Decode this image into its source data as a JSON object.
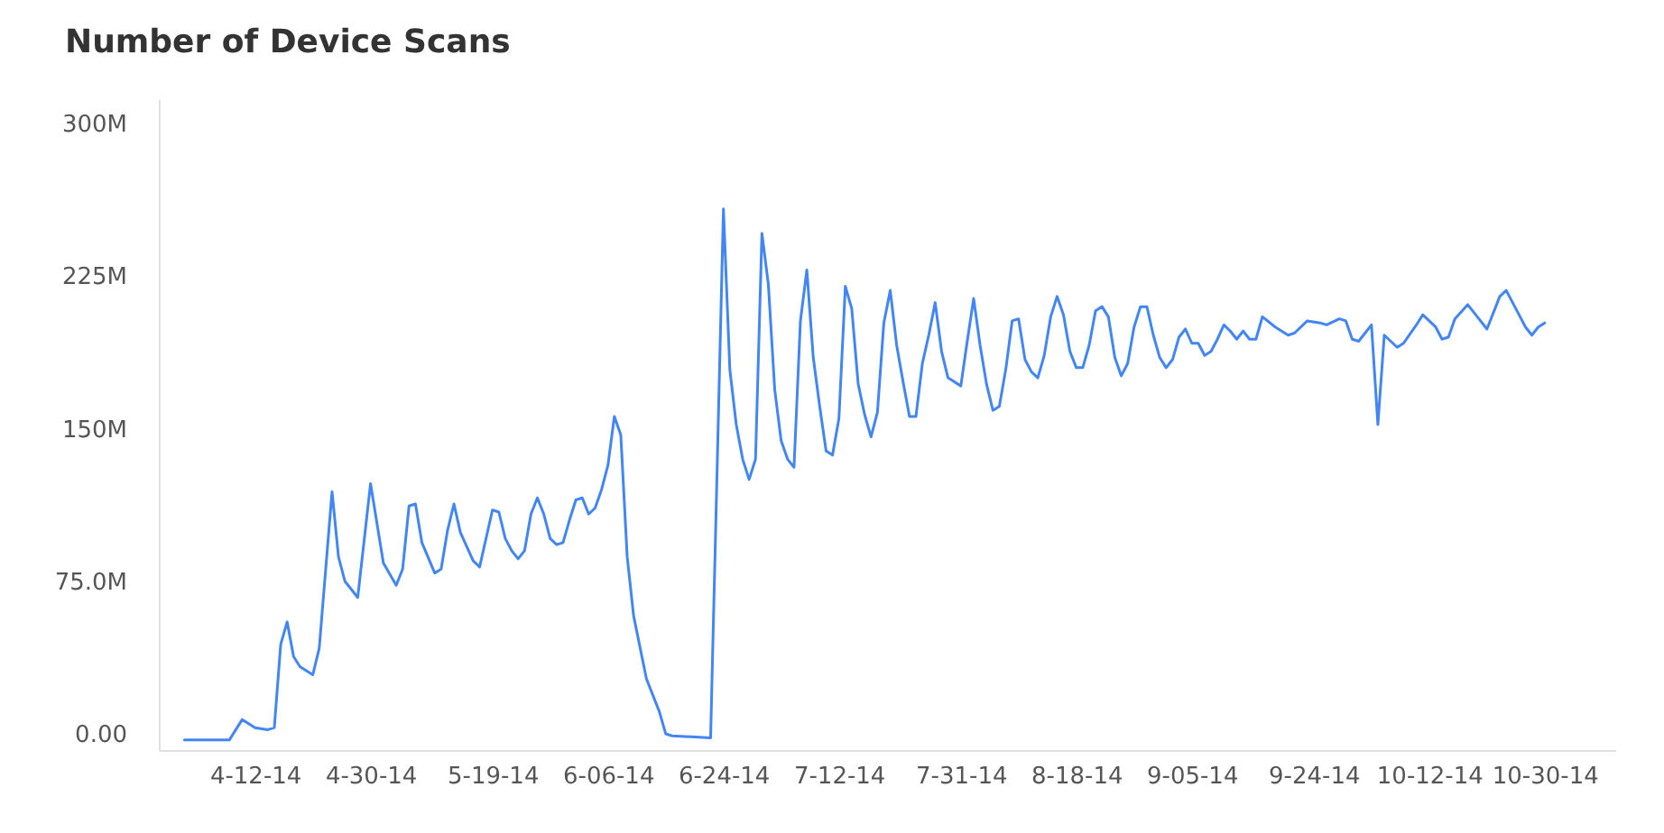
{
  "chart_data": {
    "type": "line",
    "title": "Number of Device Scans",
    "x": [
      "2014-04-01",
      "2014-04-08",
      "2014-04-10",
      "2014-04-12",
      "2014-04-14",
      "2014-04-15",
      "2014-04-16",
      "2014-04-17",
      "2014-04-18",
      "2014-04-19",
      "2014-04-21",
      "2014-04-22",
      "2014-04-24",
      "2014-04-25",
      "2014-04-26",
      "2014-04-28",
      "2014-04-30",
      "2014-05-02",
      "2014-05-04",
      "2014-05-05",
      "2014-05-06",
      "2014-05-07",
      "2014-05-08",
      "2014-05-10",
      "2014-05-11",
      "2014-05-12",
      "2014-05-13",
      "2014-05-14",
      "2014-05-16",
      "2014-05-17",
      "2014-05-19",
      "2014-05-20",
      "2014-05-21",
      "2014-05-22",
      "2014-05-23",
      "2014-05-24",
      "2014-05-25",
      "2014-05-26",
      "2014-05-27",
      "2014-05-28",
      "2014-05-29",
      "2014-05-30",
      "2014-05-31",
      "2014-06-01",
      "2014-06-02",
      "2014-06-03",
      "2014-06-04",
      "2014-06-05",
      "2014-06-06",
      "2014-06-07",
      "2014-06-08",
      "2014-06-09",
      "2014-06-10",
      "2014-06-12",
      "2014-06-14",
      "2014-06-15",
      "2014-06-16",
      "2014-06-22",
      "2014-06-24",
      "2014-06-25",
      "2014-06-26",
      "2014-06-27",
      "2014-06-28",
      "2014-06-29",
      "2014-06-30",
      "2014-07-01",
      "2014-07-02",
      "2014-07-03",
      "2014-07-04",
      "2014-07-05",
      "2014-07-06",
      "2014-07-07",
      "2014-07-08",
      "2014-07-09",
      "2014-07-10",
      "2014-07-11",
      "2014-07-12",
      "2014-07-13",
      "2014-07-14",
      "2014-07-15",
      "2014-07-16",
      "2014-07-17",
      "2014-07-18",
      "2014-07-19",
      "2014-07-20",
      "2014-07-21",
      "2014-07-22",
      "2014-07-23",
      "2014-07-24",
      "2014-07-25",
      "2014-07-26",
      "2014-07-27",
      "2014-07-28",
      "2014-07-29",
      "2014-07-31",
      "2014-08-01",
      "2014-08-02",
      "2014-08-03",
      "2014-08-04",
      "2014-08-05",
      "2014-08-06",
      "2014-08-07",
      "2014-08-08",
      "2014-08-09",
      "2014-08-10",
      "2014-08-11",
      "2014-08-12",
      "2014-08-13",
      "2014-08-14",
      "2014-08-15",
      "2014-08-16",
      "2014-08-17",
      "2014-08-18",
      "2014-08-19",
      "2014-08-20",
      "2014-08-21",
      "2014-08-22",
      "2014-08-23",
      "2014-08-24",
      "2014-08-25",
      "2014-08-26",
      "2014-08-27",
      "2014-08-28",
      "2014-08-29",
      "2014-08-30",
      "2014-08-31",
      "2014-09-01",
      "2014-09-02",
      "2014-09-03",
      "2014-09-04",
      "2014-09-05",
      "2014-09-06",
      "2014-09-07",
      "2014-09-08",
      "2014-09-09",
      "2014-09-10",
      "2014-09-11",
      "2014-09-12",
      "2014-09-13",
      "2014-09-14",
      "2014-09-15",
      "2014-09-16",
      "2014-09-18",
      "2014-09-20",
      "2014-09-21",
      "2014-09-23",
      "2014-09-25",
      "2014-09-26",
      "2014-09-28",
      "2014-09-29",
      "2014-09-30",
      "2014-10-01",
      "2014-10-02",
      "2014-10-03",
      "2014-10-04",
      "2014-10-05",
      "2014-10-07",
      "2014-10-08",
      "2014-10-10",
      "2014-10-11",
      "2014-10-13",
      "2014-10-14",
      "2014-10-15",
      "2014-10-16",
      "2014-10-18",
      "2014-10-19",
      "2014-10-21",
      "2014-10-23",
      "2014-10-24",
      "2014-10-26",
      "2014-10-27",
      "2014-10-28",
      "2014-10-29",
      "2014-10-30"
    ],
    "series": [
      {
        "color": "#4285f4",
        "values": [
          -3,
          -3,
          7,
          3,
          2,
          3,
          44,
          55,
          38,
          33,
          29,
          42,
          119,
          87,
          75,
          67,
          123,
          84,
          73,
          81,
          112,
          113,
          94,
          79,
          81,
          100,
          113,
          99,
          85,
          82,
          110,
          109,
          96,
          90,
          86,
          90,
          108,
          116,
          108,
          96,
          93,
          94,
          105,
          115,
          116,
          108,
          111,
          120,
          132,
          156,
          147,
          87,
          58,
          27,
          11,
          0,
          -1,
          -2,
          258,
          179,
          152,
          135,
          125,
          135,
          246,
          221,
          169,
          144,
          135,
          131,
          203,
          228,
          185,
          161,
          139,
          137,
          155,
          220,
          209,
          172,
          157,
          146,
          158,
          202,
          218,
          191,
          173,
          156,
          156,
          182,
          196,
          212,
          188,
          175,
          171,
          193,
          214,
          191,
          172,
          159,
          161,
          179,
          203,
          204,
          184,
          178,
          175,
          186,
          205,
          215,
          206,
          188,
          180,
          180,
          191,
          208,
          210,
          205,
          185,
          176,
          182,
          200,
          210,
          210,
          196,
          185,
          180,
          184,
          195,
          199,
          192,
          192,
          186,
          188,
          194,
          201,
          198,
          194,
          198,
          194,
          194,
          205,
          200,
          196,
          197,
          203,
          202,
          201,
          204,
          203,
          194,
          193,
          197,
          201,
          152,
          196,
          190,
          192,
          201,
          206,
          200,
          194,
          195,
          204,
          211,
          207,
          199,
          215,
          218,
          206,
          200,
          196,
          200,
          202
        ]
      }
    ],
    "xlim": [
      "2014-03-28",
      "2014-11-10"
    ],
    "xticks": [
      {
        "value": "2014-04-12",
        "label": "4-12-14"
      },
      {
        "value": "2014-04-30",
        "label": "4-30-14"
      },
      {
        "value": "2014-05-19",
        "label": "5-19-14"
      },
      {
        "value": "2014-06-06",
        "label": "6-06-14"
      },
      {
        "value": "2014-06-24",
        "label": "6-24-14"
      },
      {
        "value": "2014-07-12",
        "label": "7-12-14"
      },
      {
        "value": "2014-07-31",
        "label": "7-31-14"
      },
      {
        "value": "2014-08-18",
        "label": "8-18-14"
      },
      {
        "value": "2014-09-05",
        "label": "9-05-14"
      },
      {
        "value": "2014-09-24",
        "label": "9-24-14"
      },
      {
        "value": "2014-10-12",
        "label": "10-12-14"
      },
      {
        "value": "2014-10-30",
        "label": "10-30-14"
      }
    ],
    "ylim": [
      -8,
      312
    ],
    "yticks": [
      {
        "value": 0,
        "label": "0.00"
      },
      {
        "value": 75,
        "label": "75.0M"
      },
      {
        "value": 150,
        "label": "150M"
      },
      {
        "value": 225,
        "label": "225M"
      },
      {
        "value": 300,
        "label": "300M"
      }
    ],
    "marker": "none",
    "line_style": "solid"
  }
}
